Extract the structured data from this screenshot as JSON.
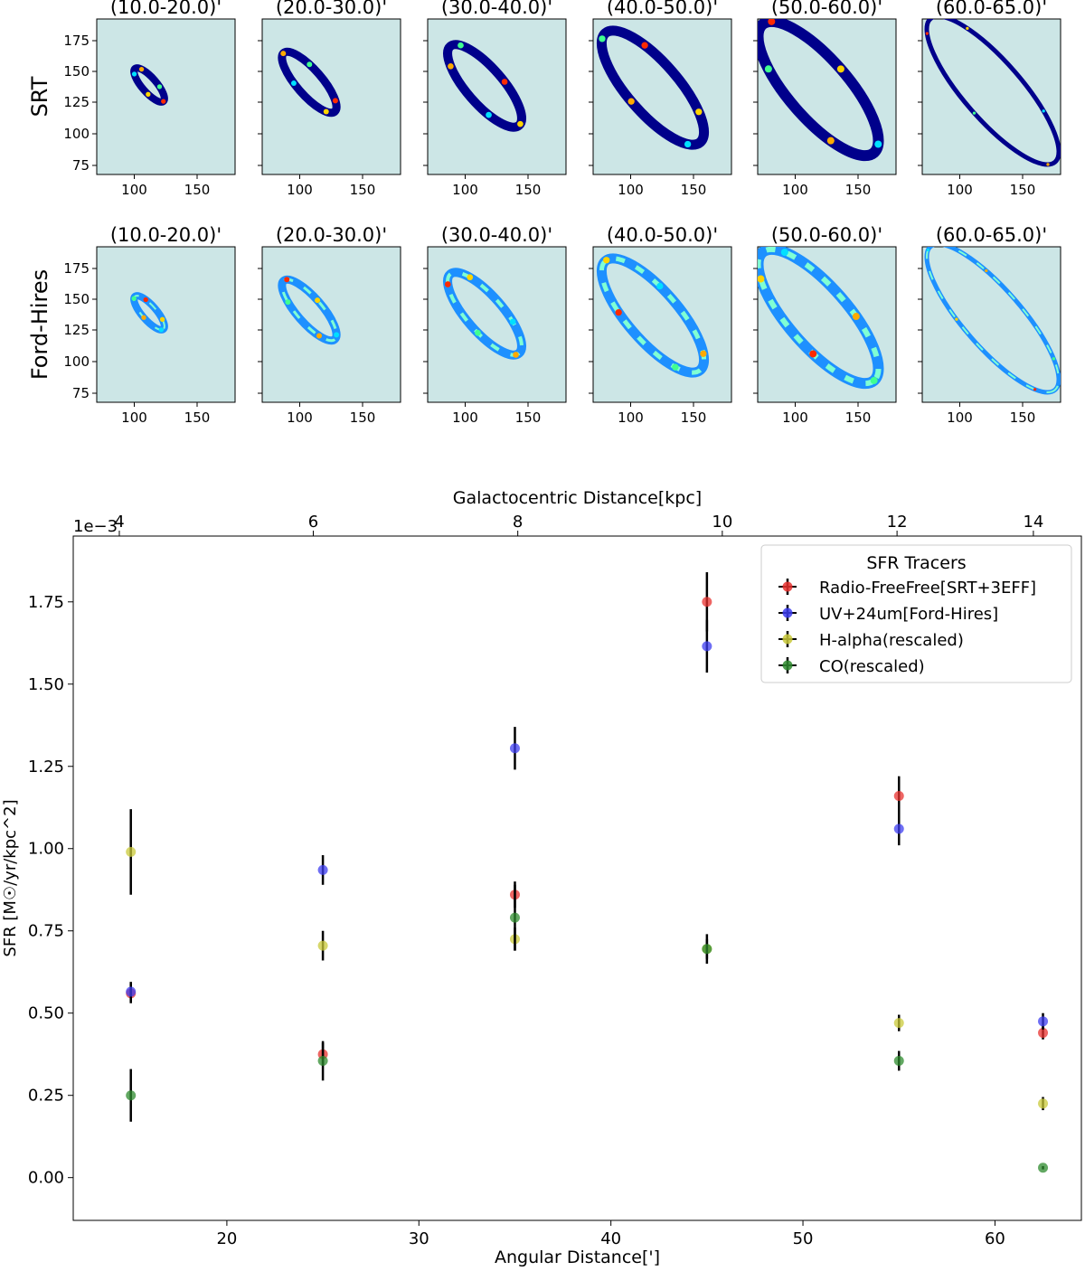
{
  "panels": {
    "rows": [
      {
        "label": "SRT",
        "titles": [
          "(10.0-20.0)'",
          "(20.0-30.0)'",
          "(30.0-40.0)'",
          "(40.0-50.0)'",
          "(50.0-60.0)'",
          "(60.0-65.0)'"
        ]
      },
      {
        "label": "Ford-Hires",
        "titles": [
          "(10.0-20.0)'",
          "(20.0-30.0)'",
          "(30.0-40.0)'",
          "(40.0-50.0)'",
          "(50.0-60.0)'",
          "(60.0-65.0)'"
        ]
      }
    ],
    "xticks": [
      "100",
      "150"
    ],
    "yticks": [
      "175",
      "150",
      "125",
      "100",
      "75"
    ],
    "bg_color": "#cce6e6",
    "ring_color": "#00008b"
  },
  "chart_data": {
    "type": "scatter",
    "xlabel": "Angular Distance[']",
    "ylabel": "SFR [M☉/yr/kpc^2]",
    "top_xlabel": "Galactocentric Distance[kpc]",
    "y_offset_text": "1e−3",
    "xlim": [
      12,
      64.5
    ],
    "ylim": [
      -0.13,
      1.95
    ],
    "xticks": [
      20,
      30,
      40,
      50,
      60
    ],
    "yticks": [
      0.0,
      0.25,
      0.5,
      0.75,
      1.0,
      1.25,
      1.5,
      1.75
    ],
    "ytick_labels": [
      "0.00",
      "0.25",
      "0.50",
      "0.75",
      "1.00",
      "1.25",
      "1.50",
      "1.75"
    ],
    "top_xticks": [
      {
        "label": "4",
        "x": 14.4
      },
      {
        "label": "6",
        "x": 24.5
      },
      {
        "label": "8",
        "x": 35.15
      },
      {
        "label": "10",
        "x": 45.8
      },
      {
        "label": "12",
        "x": 54.9
      },
      {
        "label": "14",
        "x": 62.0
      }
    ],
    "legend_title": "SFR Tracers",
    "legend_position": "top-right",
    "series": [
      {
        "name": "Radio-FreeFree[SRT+3EFF]",
        "color": "#e8312f",
        "points": [
          {
            "x": 15,
            "y": 0.56,
            "err": 0.03
          },
          {
            "x": 25,
            "y": 0.375,
            "err": 0.035
          },
          {
            "x": 35,
            "y": 0.86,
            "err": 0.04
          },
          {
            "x": 45,
            "y": 1.75,
            "err": 0.09
          },
          {
            "x": 55,
            "y": 1.16,
            "err": 0.06
          },
          {
            "x": 62.5,
            "y": 0.44,
            "err": 0.02
          }
        ]
      },
      {
        "name": "UV+24um[Ford-Hires]",
        "color": "#3d3df0",
        "points": [
          {
            "x": 15,
            "y": 0.565,
            "err": 0.03
          },
          {
            "x": 25,
            "y": 0.935,
            "err": 0.045
          },
          {
            "x": 35,
            "y": 1.305,
            "err": 0.065
          },
          {
            "x": 45,
            "y": 1.615,
            "err": 0.08
          },
          {
            "x": 55,
            "y": 1.06,
            "err": 0.05
          },
          {
            "x": 62.5,
            "y": 0.475,
            "err": 0.025
          }
        ]
      },
      {
        "name": "H-alpha(rescaled)",
        "color": "#c9c93a",
        "points": [
          {
            "x": 15,
            "y": 0.99,
            "err": 0.13
          },
          {
            "x": 25,
            "y": 0.705,
            "err": 0.045
          },
          {
            "x": 35,
            "y": 0.725,
            "err": 0.035
          },
          {
            "x": 45,
            "y": 0.695,
            "err": 0.03
          },
          {
            "x": 55,
            "y": 0.47,
            "err": 0.025
          },
          {
            "x": 62.5,
            "y": 0.225,
            "err": 0.02
          }
        ]
      },
      {
        "name": "CO(rescaled)",
        "color": "#2e8b2e",
        "points": [
          {
            "x": 15,
            "y": 0.25,
            "err": 0.08
          },
          {
            "x": 25,
            "y": 0.355,
            "err": 0.06
          },
          {
            "x": 35,
            "y": 0.79,
            "err": 0.1
          },
          {
            "x": 45,
            "y": 0.695,
            "err": 0.045
          },
          {
            "x": 55,
            "y": 0.355,
            "err": 0.03
          },
          {
            "x": 62.5,
            "y": 0.03,
            "err": 0.005
          }
        ]
      }
    ]
  }
}
